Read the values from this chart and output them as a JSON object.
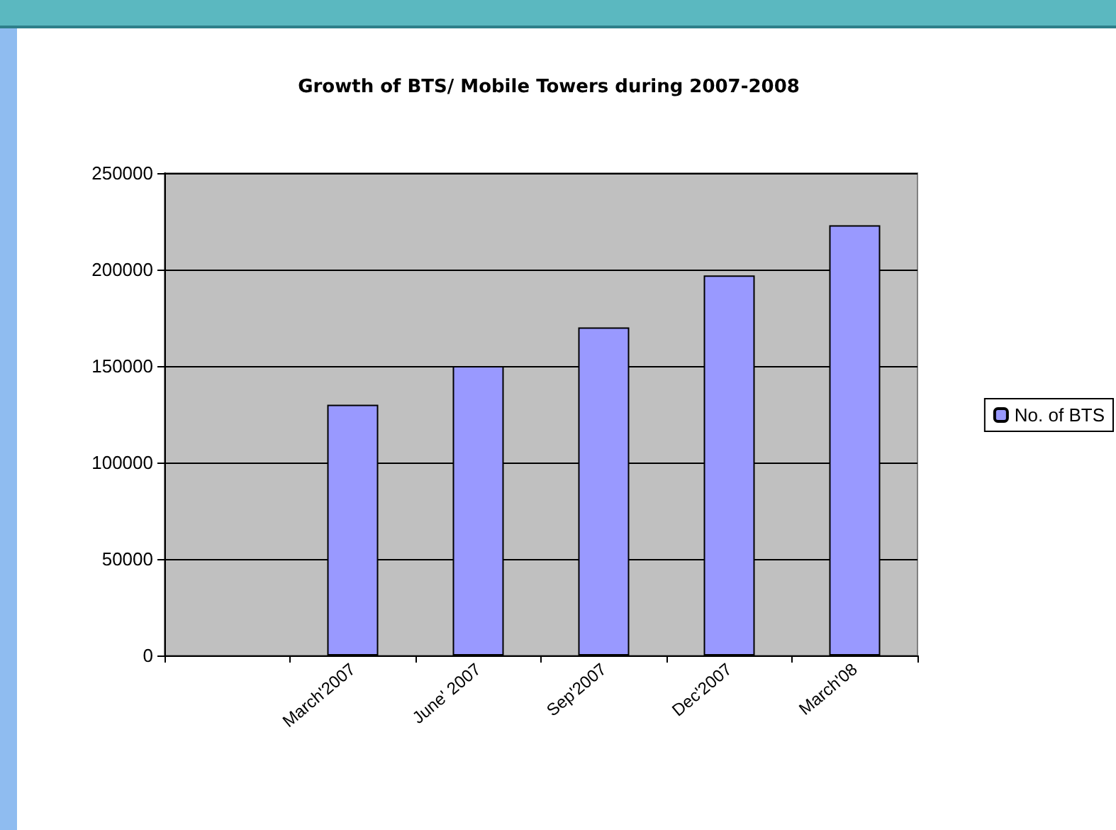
{
  "chart_data": {
    "type": "bar",
    "title": "Growth of BTS/ Mobile Towers during 2007-2008",
    "categories": [
      null,
      "March'2007",
      "June' 2007",
      "Sep'2007",
      "Dec'2007",
      "March'08"
    ],
    "series": [
      {
        "name": "No. of BTS",
        "color": "#9999ff",
        "values": [
          null,
          130000,
          150000,
          170000,
          197000,
          223000
        ]
      }
    ],
    "ylim": [
      0,
      250000
    ],
    "yticks": [
      0,
      50000,
      100000,
      150000,
      200000,
      250000
    ],
    "grid": "y",
    "legend": "right"
  }
}
